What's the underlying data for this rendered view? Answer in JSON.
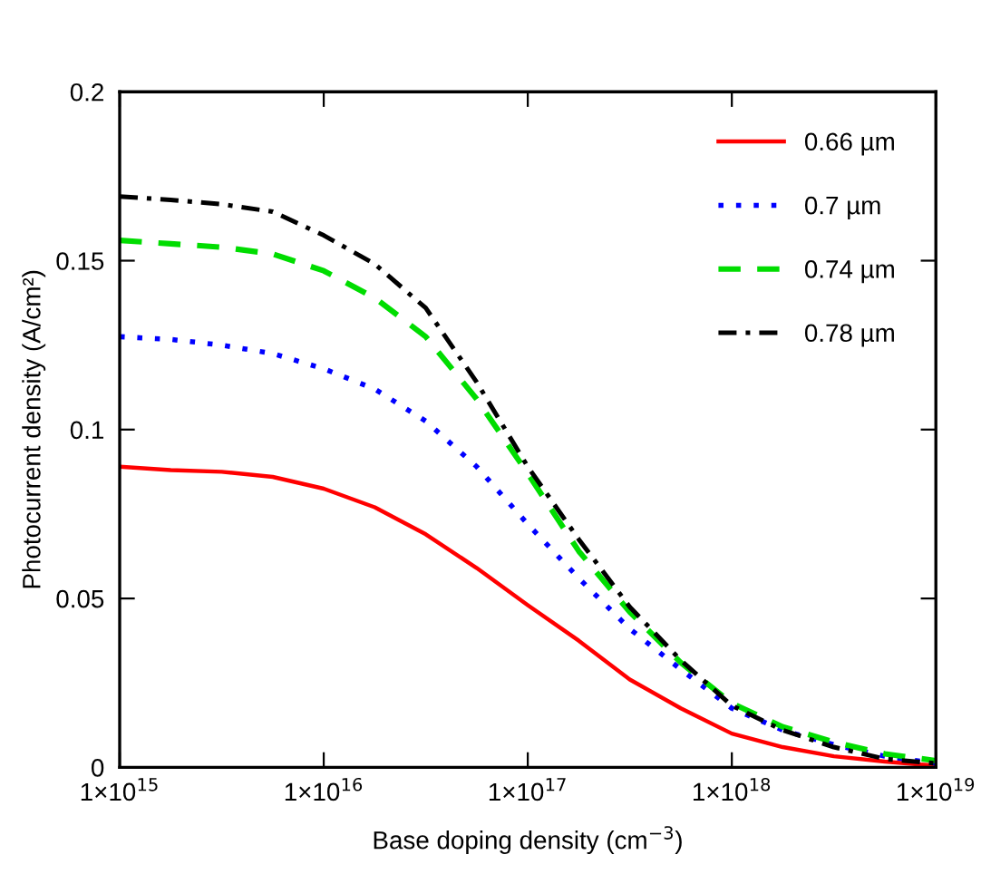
{
  "chart_data": {
    "type": "line",
    "xlabel": "Base doping density (cm$^{−3}$)",
    "ylabel": "Photocurrent density (A/cm²)",
    "log": "x",
    "xlim": [
      1000000000000000.0,
      1e+19
    ],
    "ylim": [
      0,
      0.2
    ],
    "xticks": [
      {
        "value": 1000000000000000.0,
        "label": "1×10$^{15}$"
      },
      {
        "value": 1e+16,
        "label": "1×10$^{16}$"
      },
      {
        "value": 1e+17,
        "label": "1×10$^{17}$"
      },
      {
        "value": 1e+18,
        "label": "1×10$^{18}$"
      },
      {
        "value": 1e+19,
        "label": "1×10$^{19}$"
      }
    ],
    "yticks": [
      0,
      0.05,
      0.1,
      0.15,
      0.2
    ],
    "x": [
      1000000000000000.0,
      1778000000000000.0,
      3162000000000000.0,
      5623000000000000.0,
      1e+16,
      1.778e+16,
      3.162e+16,
      5.623e+16,
      1e+17,
      1.778e+17,
      3.162e+17,
      5.623e+17,
      1e+18,
      1.778e+18,
      3.162e+18,
      5.623e+18,
      1e+19
    ],
    "legend": "top right",
    "grid": false,
    "marker": "none",
    "series": [
      {
        "name": "0.66 µm",
        "color": "#ff0000",
        "line_style": "solid",
        "values": [
          0.089,
          0.088,
          0.0875,
          0.086,
          0.0825,
          0.077,
          0.069,
          0.059,
          0.048,
          0.0375,
          0.026,
          0.0175,
          0.01,
          0.006,
          0.0033,
          0.0017,
          0.0005
        ]
      },
      {
        "name": "0.7 µm",
        "color": "#0000ff",
        "line_style": "dotted",
        "values": [
          0.1275,
          0.1267,
          0.125,
          0.1225,
          0.118,
          0.112,
          0.1025,
          0.089,
          0.072,
          0.056,
          0.041,
          0.029,
          0.0175,
          0.011,
          0.0067,
          0.0033,
          0.0012
        ]
      },
      {
        "name": "0.74 µm",
        "color": "#00dd00",
        "line_style": "dashed",
        "values": [
          0.156,
          0.155,
          0.154,
          0.152,
          0.147,
          0.139,
          0.1275,
          0.109,
          0.087,
          0.064,
          0.046,
          0.031,
          0.019,
          0.012,
          0.0075,
          0.004,
          0.002
        ]
      },
      {
        "name": "0.78 µm",
        "color": "#000000",
        "line_style": "dashdot",
        "values": [
          0.169,
          0.168,
          0.1667,
          0.1645,
          0.1575,
          0.149,
          0.136,
          0.114,
          0.089,
          0.0675,
          0.0475,
          0.0317,
          0.0183,
          0.011,
          0.006,
          0.0025,
          0.0012
        ]
      }
    ]
  }
}
